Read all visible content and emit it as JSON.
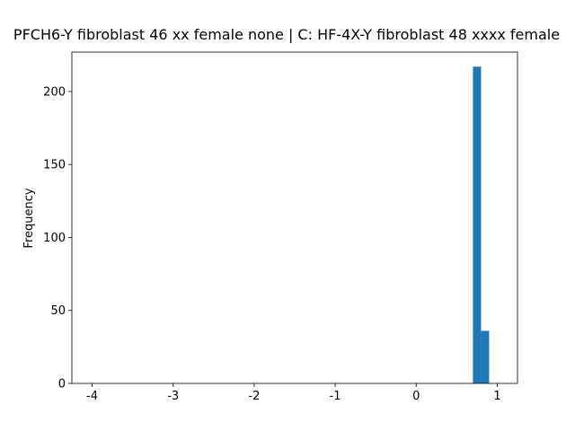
{
  "chart_data": {
    "type": "histogram",
    "title": "PFCH6-Y fibroblast 46 xx female none | C: HF-4X-Y fibroblast 48 xxxx female",
    "ylabel": "Frequency",
    "color": "#1f77b4",
    "bins": [
      -4,
      -3.9,
      -3.8,
      -3.7,
      -3.6,
      -3.5,
      -3.4,
      -3.3,
      -3.2,
      -3.1,
      -3,
      -2.9,
      -2.8,
      -2.7,
      -2.6,
      -2.5,
      -2.4,
      -2.3,
      -2.2,
      -2.1,
      -2,
      -1.9,
      -1.8,
      -1.7,
      -1.6,
      -1.5,
      -1.4,
      -1.3,
      -1.2,
      -1.1,
      -1,
      -0.9,
      -0.8,
      -0.7,
      -0.6,
      -0.5,
      -0.4,
      -0.3,
      -0.2,
      -0.1,
      0,
      0.1,
      0.2,
      0.3,
      0.4,
      0.5,
      0.6,
      0.7,
      0.8,
      0.9,
      1
    ],
    "values": [
      0,
      0,
      0,
      0,
      0,
      0,
      0,
      0,
      0,
      0,
      0,
      0,
      0,
      0,
      0,
      0,
      0,
      0,
      0,
      0,
      0,
      0,
      0,
      0,
      0,
      0,
      0,
      0,
      0,
      0,
      0,
      0,
      0,
      0,
      0,
      0,
      0,
      0,
      0,
      0,
      0,
      0,
      0,
      0,
      0,
      0,
      0,
      217,
      36,
      0
    ],
    "xlim": [
      -4.25,
      1.25
    ],
    "xticks": [
      -4,
      -3,
      -2,
      -1,
      0,
      1
    ],
    "ylim": [
      0,
      227
    ],
    "yticks": [
      0,
      50,
      100,
      150,
      200
    ]
  }
}
